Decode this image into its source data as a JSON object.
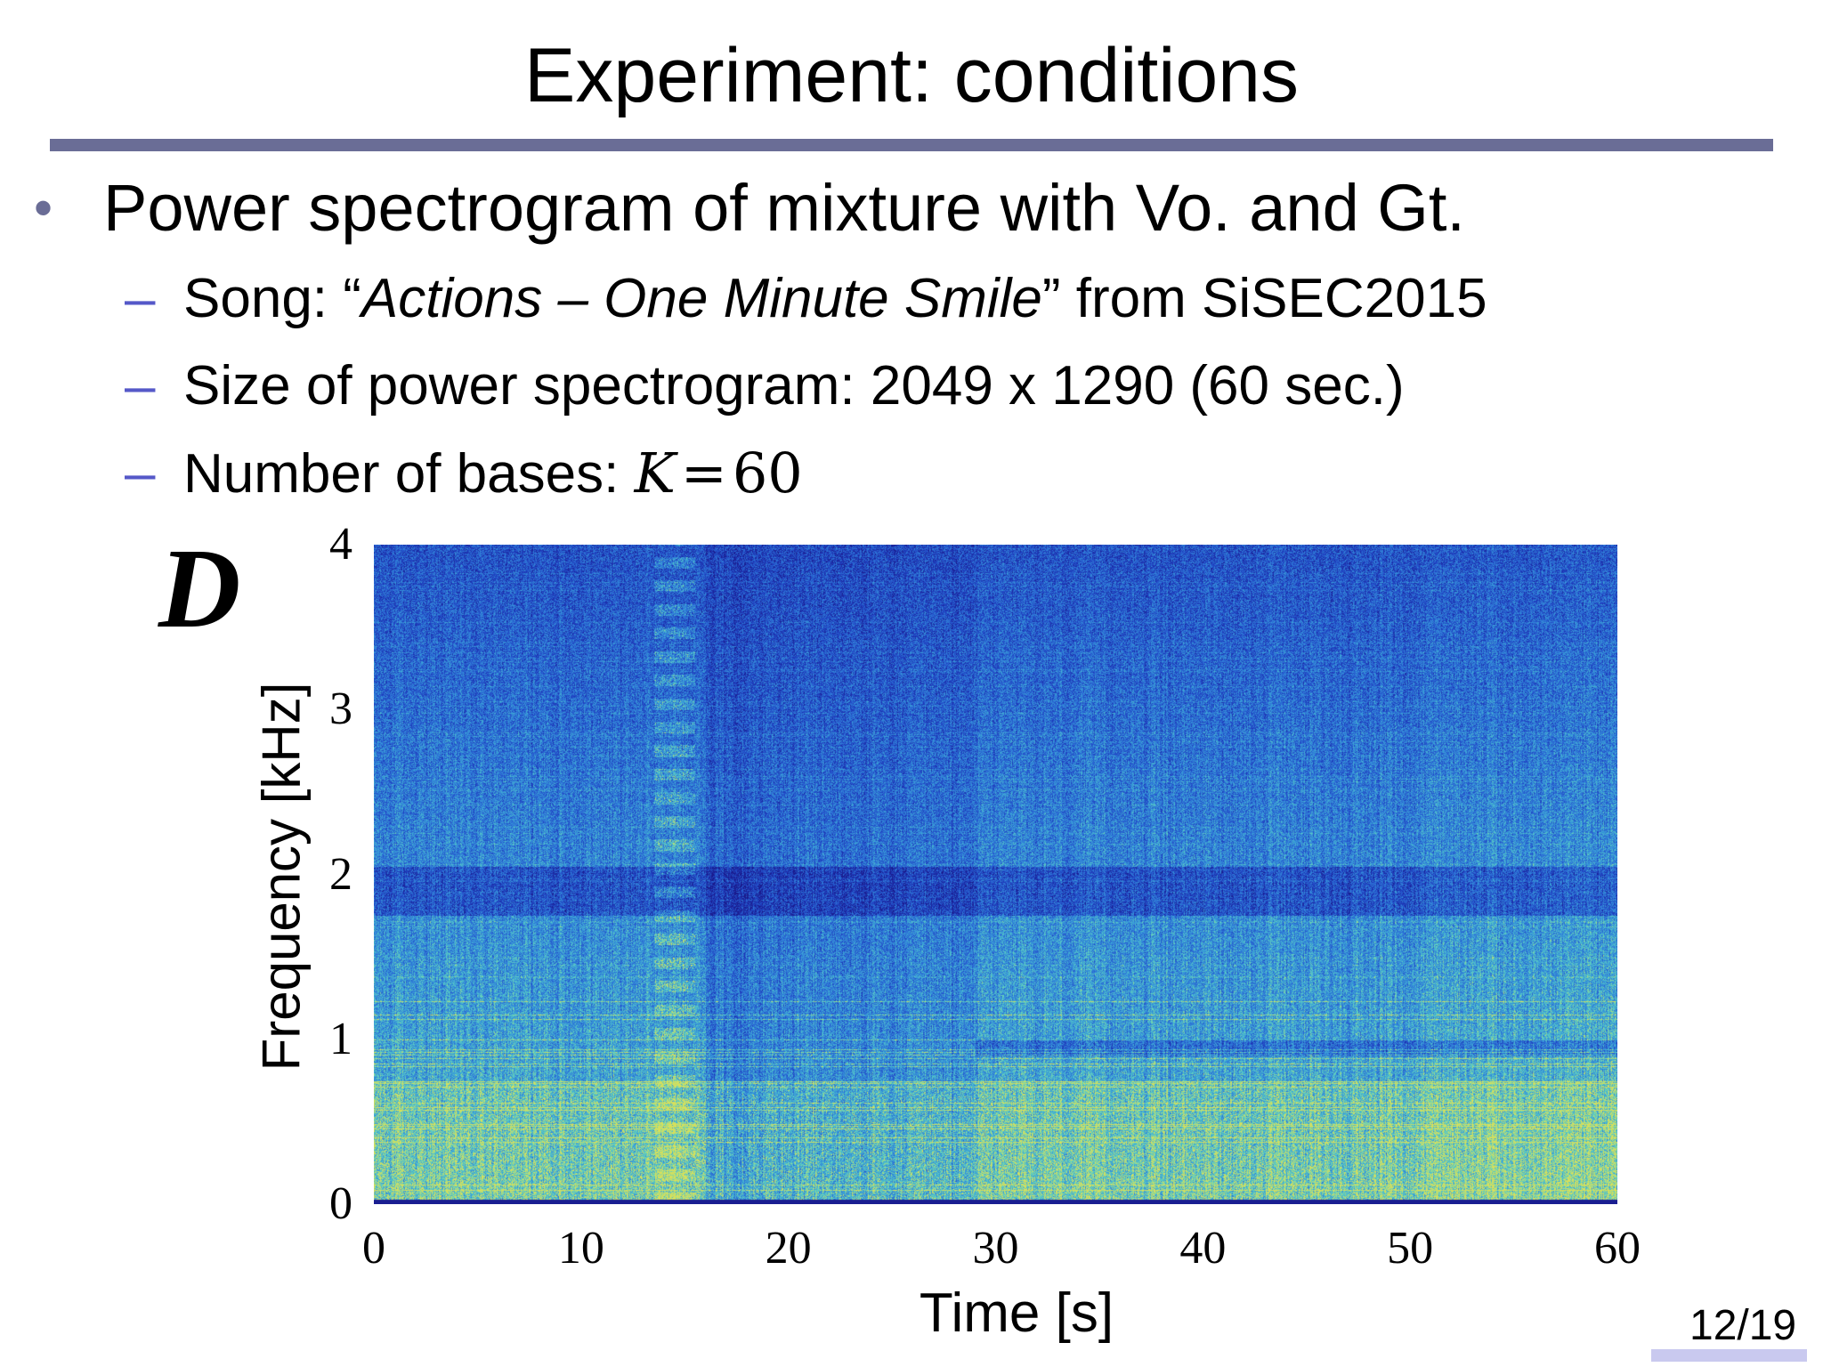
{
  "slide": {
    "title": "Experiment: conditions",
    "bullet": "Power spectrogram of mixture with Vo. and Gt.",
    "subbullets": {
      "song_prefix": "Song: “",
      "song_title": "Actions – One Minute Smile",
      "song_suffix": "” from SiSEC2015",
      "size": "Size of power spectrogram: 2049 x 1290 (60 sec.)",
      "bases_prefix": "Number of bases: ",
      "bases_var": "K",
      "bases_eq": "=",
      "bases_value": "60"
    },
    "dash": "–",
    "dot": "•",
    "matrix_label": "D",
    "page_number": "12/19"
  },
  "chart_data": {
    "type": "heatmap",
    "title": "",
    "xlabel": "Time [s]",
    "ylabel": "Frequency [kHz]",
    "xlim": [
      0,
      60
    ],
    "ylim": [
      0,
      4
    ],
    "x_ticks": [
      "0",
      "10",
      "20",
      "30",
      "40",
      "50",
      "60"
    ],
    "y_ticks": [
      "0",
      "1",
      "2",
      "3",
      "4"
    ],
    "size": "2049 x 1290",
    "duration_s": 60,
    "colormap": [
      "#1a1a8c",
      "#1f3fbf",
      "#2c6fd6",
      "#3aa0d8",
      "#5fd0c0",
      "#d8e05a"
    ],
    "grid": false
  }
}
